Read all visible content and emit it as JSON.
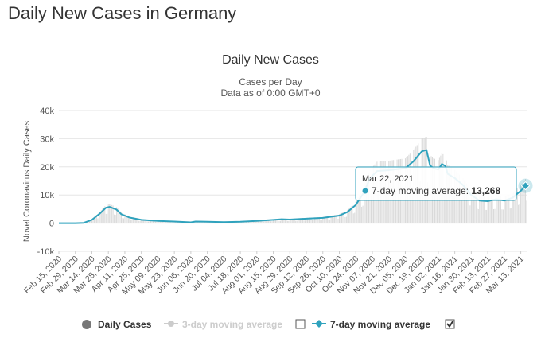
{
  "page": {
    "title": "Daily New Cases in Germany"
  },
  "colors": {
    "line": "#2fa2bd",
    "bars": "#d9d9d9",
    "grid": "#e6e6e6",
    "legend_active": "#333333",
    "legend_inactive": "#cccccc"
  },
  "tooltip": {
    "date": "Mar 22, 2021",
    "label": "7-day moving average:",
    "value": "13,268"
  },
  "legend": [
    {
      "label": "Daily Cases",
      "active": true,
      "symbol": "dot"
    },
    {
      "label": "3-day moving average",
      "active": false,
      "symbol": "line-dot"
    },
    {
      "label": "7-day moving average",
      "active": true,
      "symbol": "line-diamond"
    }
  ],
  "chart_data": {
    "type": "line",
    "title": "Daily New Cases",
    "subtitle": [
      "Cases per Day",
      "Data as of 0:00 GMT+0"
    ],
    "ylabel": "Novel Coronavirus Daily Cases",
    "ylim": [
      -10000,
      40000
    ],
    "yticks": [
      -10000,
      0,
      10000,
      20000,
      30000,
      40000
    ],
    "ytick_labels": [
      "-10k",
      "0",
      "10k",
      "20k",
      "30k",
      "40k"
    ],
    "grid": true,
    "legend_position": "bottom",
    "xticks": [
      0,
      14,
      28,
      42,
      56,
      70,
      84,
      98,
      112,
      126,
      140,
      154,
      168,
      182,
      196,
      210,
      224,
      238,
      252,
      266,
      280,
      294,
      308,
      322,
      336,
      350,
      364,
      378,
      392
    ],
    "xtick_labels": [
      "Feb 15, 2020",
      "Feb 29, 2020",
      "Mar 14, 2020",
      "Mar 28, 2020",
      "Apr 11, 2020",
      "Apr 25, 2020",
      "May 09, 2020",
      "May 23, 2020",
      "Jun 06, 2020",
      "Jun 20, 2020",
      "Jul 04, 2020",
      "Jul 18, 2020",
      "Aug 01, 2020",
      "Aug 15, 2020",
      "Aug 29, 2020",
      "Sep 12, 2020",
      "Sep 26, 2020",
      "Oct 10, 2020",
      "Oct 24, 2020",
      "Nov 07, 2020",
      "Nov 21, 2020",
      "Dec 05, 2020",
      "Dec 19, 2020",
      "Jan 02, 2021",
      "Jan 16, 2021",
      "Jan 30, 2021",
      "Feb 13, 2021",
      "Feb 27, 2021",
      "Mar 13, 2021"
    ],
    "series": [
      {
        "name": "7-day moving average",
        "points": [
          [
            0,
            0
          ],
          [
            14,
            0
          ],
          [
            21,
            100
          ],
          [
            28,
            1200
          ],
          [
            35,
            3500
          ],
          [
            40,
            5500
          ],
          [
            43,
            5800
          ],
          [
            46,
            5300
          ],
          [
            49,
            4800
          ],
          [
            53,
            3200
          ],
          [
            60,
            2000
          ],
          [
            70,
            1200
          ],
          [
            84,
            800
          ],
          [
            98,
            600
          ],
          [
            112,
            300
          ],
          [
            116,
            600
          ],
          [
            126,
            500
          ],
          [
            140,
            400
          ],
          [
            154,
            500
          ],
          [
            168,
            800
          ],
          [
            182,
            1200
          ],
          [
            189,
            1400
          ],
          [
            196,
            1300
          ],
          [
            210,
            1600
          ],
          [
            224,
            1900
          ],
          [
            238,
            2700
          ],
          [
            245,
            4000
          ],
          [
            252,
            6500
          ],
          [
            259,
            11000
          ],
          [
            264,
            16000
          ],
          [
            270,
            18500
          ],
          [
            280,
            18800
          ],
          [
            294,
            19500
          ],
          [
            301,
            22000
          ],
          [
            308,
            25500
          ],
          [
            312,
            26000
          ],
          [
            315,
            20500
          ],
          [
            318,
            19500
          ],
          [
            322,
            19000
          ],
          [
            325,
            21000
          ],
          [
            328,
            20300
          ],
          [
            330,
            17500
          ],
          [
            336,
            16000
          ],
          [
            343,
            13500
          ],
          [
            350,
            10000
          ],
          [
            357,
            8000
          ],
          [
            364,
            7800
          ],
          [
            371,
            8500
          ],
          [
            378,
            8000
          ],
          [
            385,
            9000
          ],
          [
            392,
            11500
          ],
          [
            396,
            13268
          ]
        ]
      }
    ]
  }
}
